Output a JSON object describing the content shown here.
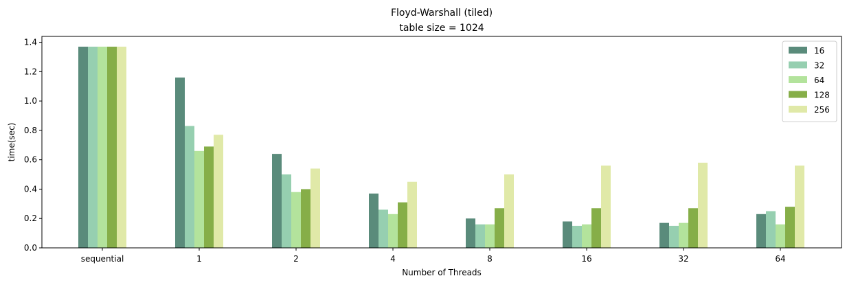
{
  "chart_data": {
    "type": "bar",
    "title": "Floyd-Warshall (tiled)",
    "subtitle": "table size = 1024",
    "xlabel": "Number of Threads",
    "ylabel": "time(sec)",
    "ylim": [
      0,
      1.44
    ],
    "yticks": [
      0.0,
      0.2,
      0.4,
      0.6,
      0.8,
      1.0,
      1.2,
      1.4
    ],
    "ytick_labels": [
      "0.0",
      "0.2",
      "0.4",
      "0.6",
      "0.8",
      "1.0",
      "1.2",
      "1.4"
    ],
    "grid": false,
    "legend_position": "top-right",
    "categories": [
      "sequential",
      "1",
      "2",
      "4",
      "8",
      "16",
      "32",
      "64"
    ],
    "series": [
      {
        "name": "16",
        "color": "#5a8b7b",
        "values": [
          1.37,
          1.16,
          0.64,
          0.37,
          0.2,
          0.18,
          0.17,
          0.23
        ]
      },
      {
        "name": "32",
        "color": "#96cfb0",
        "values": [
          1.37,
          0.83,
          0.5,
          0.26,
          0.16,
          0.15,
          0.15,
          0.25
        ]
      },
      {
        "name": "64",
        "color": "#b3e39c",
        "values": [
          1.37,
          0.66,
          0.38,
          0.23,
          0.16,
          0.16,
          0.17,
          0.16
        ]
      },
      {
        "name": "128",
        "color": "#86ae48",
        "values": [
          1.37,
          0.69,
          0.4,
          0.31,
          0.27,
          0.27,
          0.27,
          0.28
        ]
      },
      {
        "name": "256",
        "color": "#e0e9a8",
        "values": [
          1.37,
          0.77,
          0.54,
          0.45,
          0.5,
          0.56,
          0.58,
          0.56
        ]
      }
    ]
  }
}
